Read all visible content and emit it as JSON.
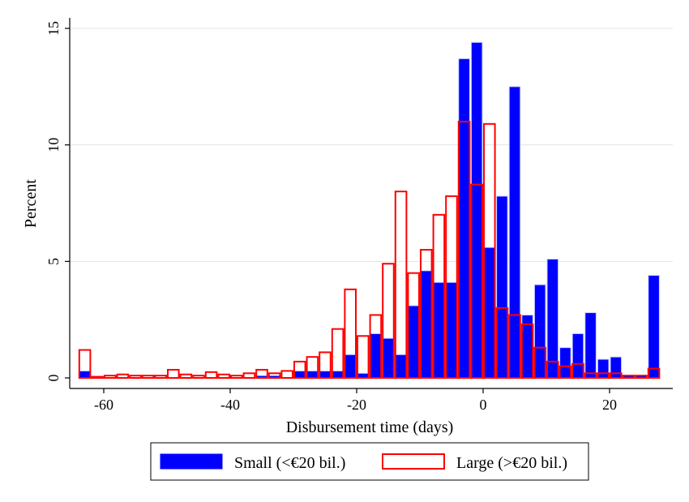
{
  "chart_data": {
    "type": "bar",
    "title": "",
    "xlabel": "Disbursement time (days)",
    "ylabel": "Percent",
    "xlim": [
      -65,
      30
    ],
    "ylim": [
      0,
      15
    ],
    "xticks": [
      -60,
      -40,
      -20,
      0,
      20
    ],
    "yticks": [
      0,
      5,
      10,
      15
    ],
    "grid": true,
    "legend_position": "bottom",
    "bin_width": 2,
    "series": [
      {
        "name": "Small (<€20 bil.)",
        "color": "#0000FF",
        "fill": true,
        "x": [
          -63,
          -35,
          -33,
          -29,
          -27,
          -25,
          -23,
          -21,
          -19,
          -17,
          -15,
          -13,
          -11,
          -9,
          -7,
          -5,
          -3,
          -1,
          1,
          3,
          5,
          7,
          9,
          11,
          13,
          15,
          17,
          19,
          21,
          23,
          25,
          27
        ],
        "values": [
          0.3,
          0.1,
          0.1,
          0.3,
          0.3,
          0.3,
          0.3,
          1.0,
          0.2,
          1.9,
          1.7,
          1.0,
          3.1,
          4.6,
          4.1,
          4.1,
          13.7,
          14.4,
          5.6,
          7.8,
          12.5,
          2.7,
          4.0,
          5.1,
          1.3,
          1.9,
          2.8,
          0.8,
          0.9,
          0.1,
          0.1,
          4.4
        ]
      },
      {
        "name": "Large (>€20 bil.)",
        "color": "#FF0000",
        "fill": false,
        "x": [
          -63,
          -61,
          -59,
          -57,
          -55,
          -53,
          -51,
          -49,
          -47,
          -45,
          -43,
          -41,
          -39,
          -37,
          -35,
          -33,
          -31,
          -29,
          -27,
          -25,
          -23,
          -21,
          -19,
          -17,
          -15,
          -13,
          -11,
          -9,
          -7,
          -5,
          -3,
          -1,
          1,
          3,
          5,
          7,
          9,
          11,
          13,
          15,
          17,
          19,
          21,
          23,
          25,
          27
        ],
        "values": [
          1.2,
          0.05,
          0.1,
          0.15,
          0.1,
          0.1,
          0.1,
          0.35,
          0.15,
          0.1,
          0.25,
          0.15,
          0.1,
          0.2,
          0.35,
          0.2,
          0.3,
          0.7,
          0.9,
          1.1,
          2.1,
          3.8,
          1.8,
          2.7,
          4.9,
          8.0,
          4.5,
          5.5,
          7.0,
          7.8,
          11.0,
          8.3,
          10.9,
          3.0,
          2.7,
          2.3,
          1.3,
          0.7,
          0.5,
          0.6,
          0.2,
          0.2,
          0.2,
          0.1,
          0.1,
          0.4
        ]
      }
    ]
  }
}
